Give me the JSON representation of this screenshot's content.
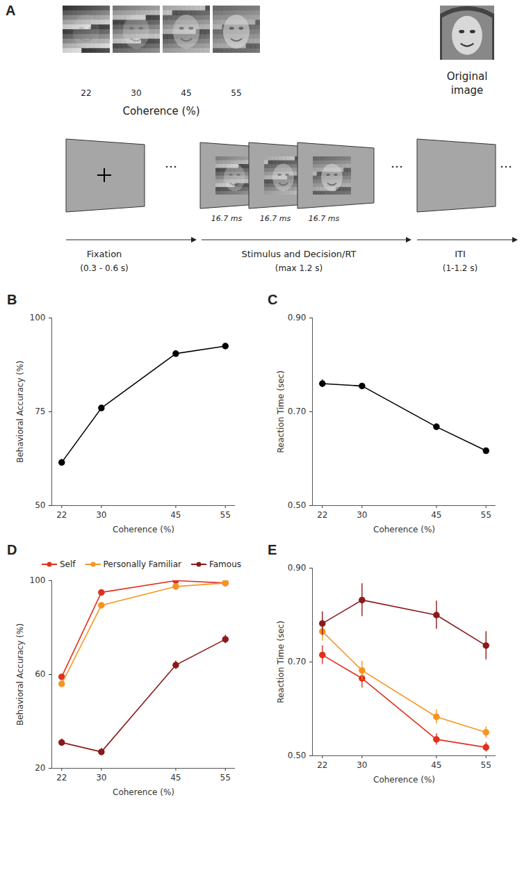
{
  "diagram": {
    "panel": "A",
    "coherence_label": "Coherence (%)",
    "images": [
      {
        "label": "22"
      },
      {
        "label": "30"
      },
      {
        "label": "45"
      },
      {
        "label": "55"
      }
    ],
    "original_label": "Original image",
    "frames": [
      {
        "duration": "16.7 ms"
      },
      {
        "duration": "16.7 ms"
      },
      {
        "duration": "16.7 ms"
      }
    ],
    "phases": [
      {
        "name": "Fixation",
        "time": "(0.3 - 0.6 s)"
      },
      {
        "name": "Stimulus and Decision/RT",
        "time": "(max 1.2 s)"
      },
      {
        "name": "ITI",
        "time": "(1-1.2 s)"
      }
    ]
  },
  "chart_data": [
    {
      "type": "line",
      "panel": "B",
      "x": [
        22,
        30,
        45,
        55
      ],
      "xlim": [
        20,
        57
      ],
      "xticks": [
        22,
        30,
        45,
        55
      ],
      "ylim": [
        50,
        100
      ],
      "yticks": [
        50,
        75,
        100
      ],
      "x_label": "Coherence (%)",
      "y_label": "Behavioral Accuracy (%)",
      "grid": false,
      "marker": "circle",
      "series": [
        {
          "color": "#000000",
          "values": [
            61.5,
            76,
            90.5,
            92.5
          ],
          "errors": [
            0.8,
            0.7,
            0.6,
            0.5
          ]
        }
      ]
    },
    {
      "type": "line",
      "panel": "C",
      "x": [
        22,
        30,
        45,
        55
      ],
      "xlim": [
        20,
        57
      ],
      "xticks": [
        22,
        30,
        45,
        55
      ],
      "ylim": [
        0.5,
        0.9
      ],
      "yticks": [
        0.5,
        0.7,
        0.9
      ],
      "x_label": "Coherence (%)",
      "y_label": "Reaction Time (sec)",
      "grid": false,
      "marker": "circle",
      "series": [
        {
          "color": "#000000",
          "values": [
            0.76,
            0.755,
            0.668,
            0.617
          ],
          "errors": [
            0.008,
            0.006,
            0.004,
            0.004
          ]
        }
      ]
    },
    {
      "type": "line",
      "panel": "D",
      "x": [
        22,
        30,
        45,
        55
      ],
      "xlim": [
        20,
        57
      ],
      "xticks": [
        22,
        30,
        45,
        55
      ],
      "ylim": [
        20,
        100
      ],
      "yticks": [
        20,
        60,
        100
      ],
      "x_label": "Coherence (%)",
      "y_label": "Behavioral Accuracy (%)",
      "grid": false,
      "marker": "circle",
      "legend": "top",
      "series": [
        {
          "name": "Self",
          "color": "#e0301e",
          "values": [
            59,
            95,
            100,
            99
          ],
          "errors": [
            1,
            0.8,
            0.4,
            0.5
          ]
        },
        {
          "name": "Personally Familiar",
          "color": "#f7941d",
          "values": [
            56,
            89.5,
            97.5,
            99
          ],
          "errors": [
            1,
            1,
            0.6,
            0.5
          ]
        },
        {
          "name": "Famous",
          "color": "#8b1a1a",
          "values": [
            31,
            27,
            64,
            75
          ],
          "errors": [
            1.5,
            1.5,
            1.8,
            1.8
          ]
        }
      ]
    },
    {
      "type": "line",
      "panel": "E",
      "x": [
        22,
        30,
        45,
        55
      ],
      "xlim": [
        20,
        57
      ],
      "xticks": [
        22,
        30,
        45,
        55
      ],
      "ylim": [
        0.5,
        0.9
      ],
      "yticks": [
        0.5,
        0.7,
        0.9
      ],
      "x_label": "Coherence (%)",
      "y_label": "Reaction Time (sec)",
      "grid": false,
      "marker": "circle",
      "series": [
        {
          "name": "Self",
          "color": "#e0301e",
          "values": [
            0.715,
            0.665,
            0.535,
            0.518
          ],
          "errors": [
            0.02,
            0.02,
            0.012,
            0.01
          ]
        },
        {
          "name": "Personally Familiar",
          "color": "#f7941d",
          "values": [
            0.765,
            0.682,
            0.583,
            0.55
          ],
          "errors": [
            0.02,
            0.02,
            0.015,
            0.012
          ]
        },
        {
          "name": "Famous",
          "color": "#8b1a1a",
          "values": [
            0.782,
            0.832,
            0.8,
            0.735
          ],
          "errors": [
            0.025,
            0.035,
            0.03,
            0.03
          ]
        }
      ]
    }
  ]
}
